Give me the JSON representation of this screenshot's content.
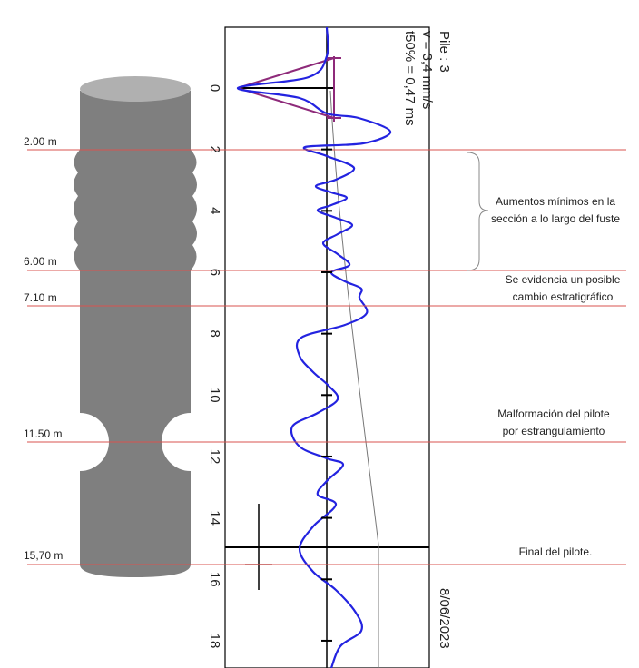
{
  "header": {
    "pile": "Pile : 3",
    "velocity": "v    = 3,4 mm/s",
    "t50": "t50% = 0,47 ms",
    "date": "8/06/2023"
  },
  "depth_axis": {
    "ticks": [
      0,
      2,
      4,
      6,
      8,
      10,
      12,
      14,
      16,
      18
    ]
  },
  "levels": [
    "2.00 m",
    "6.00 m",
    "7.10 m",
    "11.50 m",
    "15,70 m"
  ],
  "annotations": [
    [
      "Aumentos mínimos en la",
      "sección a lo largo del fuste"
    ],
    [
      "Se evidencia un posible",
      "cambio estratigráfico"
    ],
    [
      "Malformación del pilote",
      "por estrangulamiento"
    ],
    [
      "Final del pilote."
    ]
  ]
}
